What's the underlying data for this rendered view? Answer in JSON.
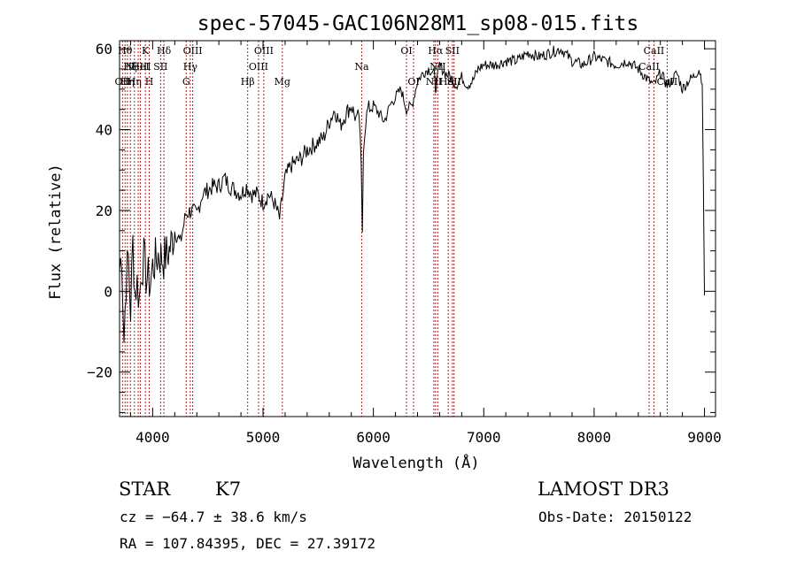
{
  "chart_data": {
    "type": "line",
    "title": "spec-57045-GAC106N28M1_sp08-015.fits",
    "xlabel": "Wavelength (Å)",
    "ylabel": "Flux (relative)",
    "xlim": [
      3700,
      9100
    ],
    "ylim": [
      -31,
      62
    ],
    "xticks": [
      4000,
      5000,
      6000,
      7000,
      8000,
      9000
    ],
    "xtick_labels": [
      "4000",
      "5000",
      "6000",
      "7000",
      "8000",
      "9000"
    ],
    "yticks": [
      -20,
      0,
      20,
      40,
      60
    ],
    "ytick_labels": [
      "−20",
      "0",
      "20",
      "40",
      "60"
    ],
    "series": [
      {
        "name": "spectrum",
        "color": "#000000",
        "x": [
          3700,
          3720,
          3740,
          3760,
          3780,
          3800,
          3820,
          3840,
          3860,
          3880,
          3900,
          3920,
          3940,
          3960,
          3980,
          4000,
          4050,
          4100,
          4150,
          4200,
          4250,
          4300,
          4350,
          4400,
          4450,
          4500,
          4550,
          4600,
          4650,
          4700,
          4750,
          4800,
          4850,
          4900,
          4950,
          5000,
          5050,
          5100,
          5150,
          5200,
          5250,
          5300,
          5350,
          5400,
          5450,
          5500,
          5550,
          5600,
          5650,
          5700,
          5750,
          5800,
          5850,
          5870,
          5890,
          5900,
          5910,
          5930,
          5950,
          6000,
          6050,
          6100,
          6150,
          6200,
          6250,
          6300,
          6350,
          6400,
          6450,
          6500,
          6550,
          6563,
          6600,
          6650,
          6700,
          6750,
          6800,
          6850,
          6900,
          6950,
          7000,
          7100,
          7200,
          7300,
          7400,
          7500,
          7600,
          7700,
          7800,
          7900,
          8000,
          8100,
          8200,
          8300,
          8400,
          8498,
          8542,
          8600,
          8662,
          8700,
          8750,
          8800,
          8850,
          8900,
          8950,
          8980,
          9000
        ],
        "values": [
          5,
          10,
          -12,
          3,
          8,
          -5,
          12,
          0,
          2,
          -2,
          6,
          8,
          4,
          3,
          2,
          6,
          9,
          8,
          10,
          15,
          12,
          19,
          20,
          19,
          24,
          25,
          26,
          26,
          28,
          26,
          25,
          24,
          26,
          24,
          24,
          22,
          24,
          22,
          18,
          28,
          31,
          32,
          33,
          35,
          36,
          37,
          38,
          42,
          45,
          41,
          44,
          46,
          42,
          44,
          30,
          15,
          36,
          42,
          45,
          46,
          44,
          42,
          46,
          48,
          50,
          45,
          46,
          52,
          54,
          55,
          54,
          50,
          56,
          54,
          53,
          51,
          53,
          51,
          52,
          55,
          56,
          56,
          57,
          57,
          59,
          58,
          59,
          60,
          57,
          56,
          58,
          57,
          56,
          57,
          55,
          52,
          51,
          54,
          51,
          52,
          54,
          50,
          52,
          53,
          55,
          52,
          -1
        ]
      }
    ],
    "lines": [
      {
        "wave": 3727,
        "label": "OII",
        "row": 2
      },
      {
        "wave": 3750,
        "label": "Hθ",
        "row": 0
      },
      {
        "wave": 3771,
        "label": "Hη",
        "row": 2
      },
      {
        "wave": 3798,
        "label": "Hζ",
        "row": 1
      },
      {
        "wave": 3835,
        "label": "Hη",
        "row": 2
      },
      {
        "wave": 3869,
        "label": "NeIII",
        "row": 1
      },
      {
        "wave": 3889,
        "label": "HeI",
        "row": 1
      },
      {
        "wave": 3934,
        "label": "K",
        "row": 0
      },
      {
        "wave": 3969,
        "label": "H",
        "row": 2
      },
      {
        "wave": 4072,
        "label": "SII",
        "row": 1
      },
      {
        "wave": 4102,
        "label": "Hδ",
        "row": 0
      },
      {
        "wave": 4304,
        "label": "G",
        "row": 2
      },
      {
        "wave": 4341,
        "label": "Hγ",
        "row": 1
      },
      {
        "wave": 4363,
        "label": "OIII",
        "row": 0
      },
      {
        "wave": 4861,
        "label": "Hβ",
        "row": 2
      },
      {
        "wave": 4959,
        "label": "OIII",
        "row": 1
      },
      {
        "wave": 5007,
        "label": "OIII",
        "row": 0
      },
      {
        "wave": 5175,
        "label": "Mg",
        "row": 2
      },
      {
        "wave": 5894,
        "label": "Na",
        "row": 1
      },
      {
        "wave": 6300,
        "label": "OI",
        "row": 0
      },
      {
        "wave": 6364,
        "label": "OI",
        "row": 2
      },
      {
        "wave": 6548,
        "label": "NII",
        "row": 2
      },
      {
        "wave": 6563,
        "label": "Hα",
        "row": 0
      },
      {
        "wave": 6583,
        "label": "NII",
        "row": 1
      },
      {
        "wave": 6678,
        "label": "HeI",
        "row": 2
      },
      {
        "wave": 6716,
        "label": "SII",
        "row": 0
      },
      {
        "wave": 6731,
        "label": "SII",
        "row": 2
      },
      {
        "wave": 8498,
        "label": "CaII",
        "row": 1
      },
      {
        "wave": 8542,
        "label": "CaII",
        "row": 0
      },
      {
        "wave": 8662,
        "label": "CaII",
        "row": 2
      }
    ]
  },
  "info": {
    "class": "STAR",
    "subclass": "K7",
    "survey": "LAMOST DR3",
    "cz": "cz = −64.7 ± 38.6 km/s",
    "obs_date": "Obs-Date: 20150122",
    "radec": "RA = 107.84395, DEC =  27.39172"
  }
}
